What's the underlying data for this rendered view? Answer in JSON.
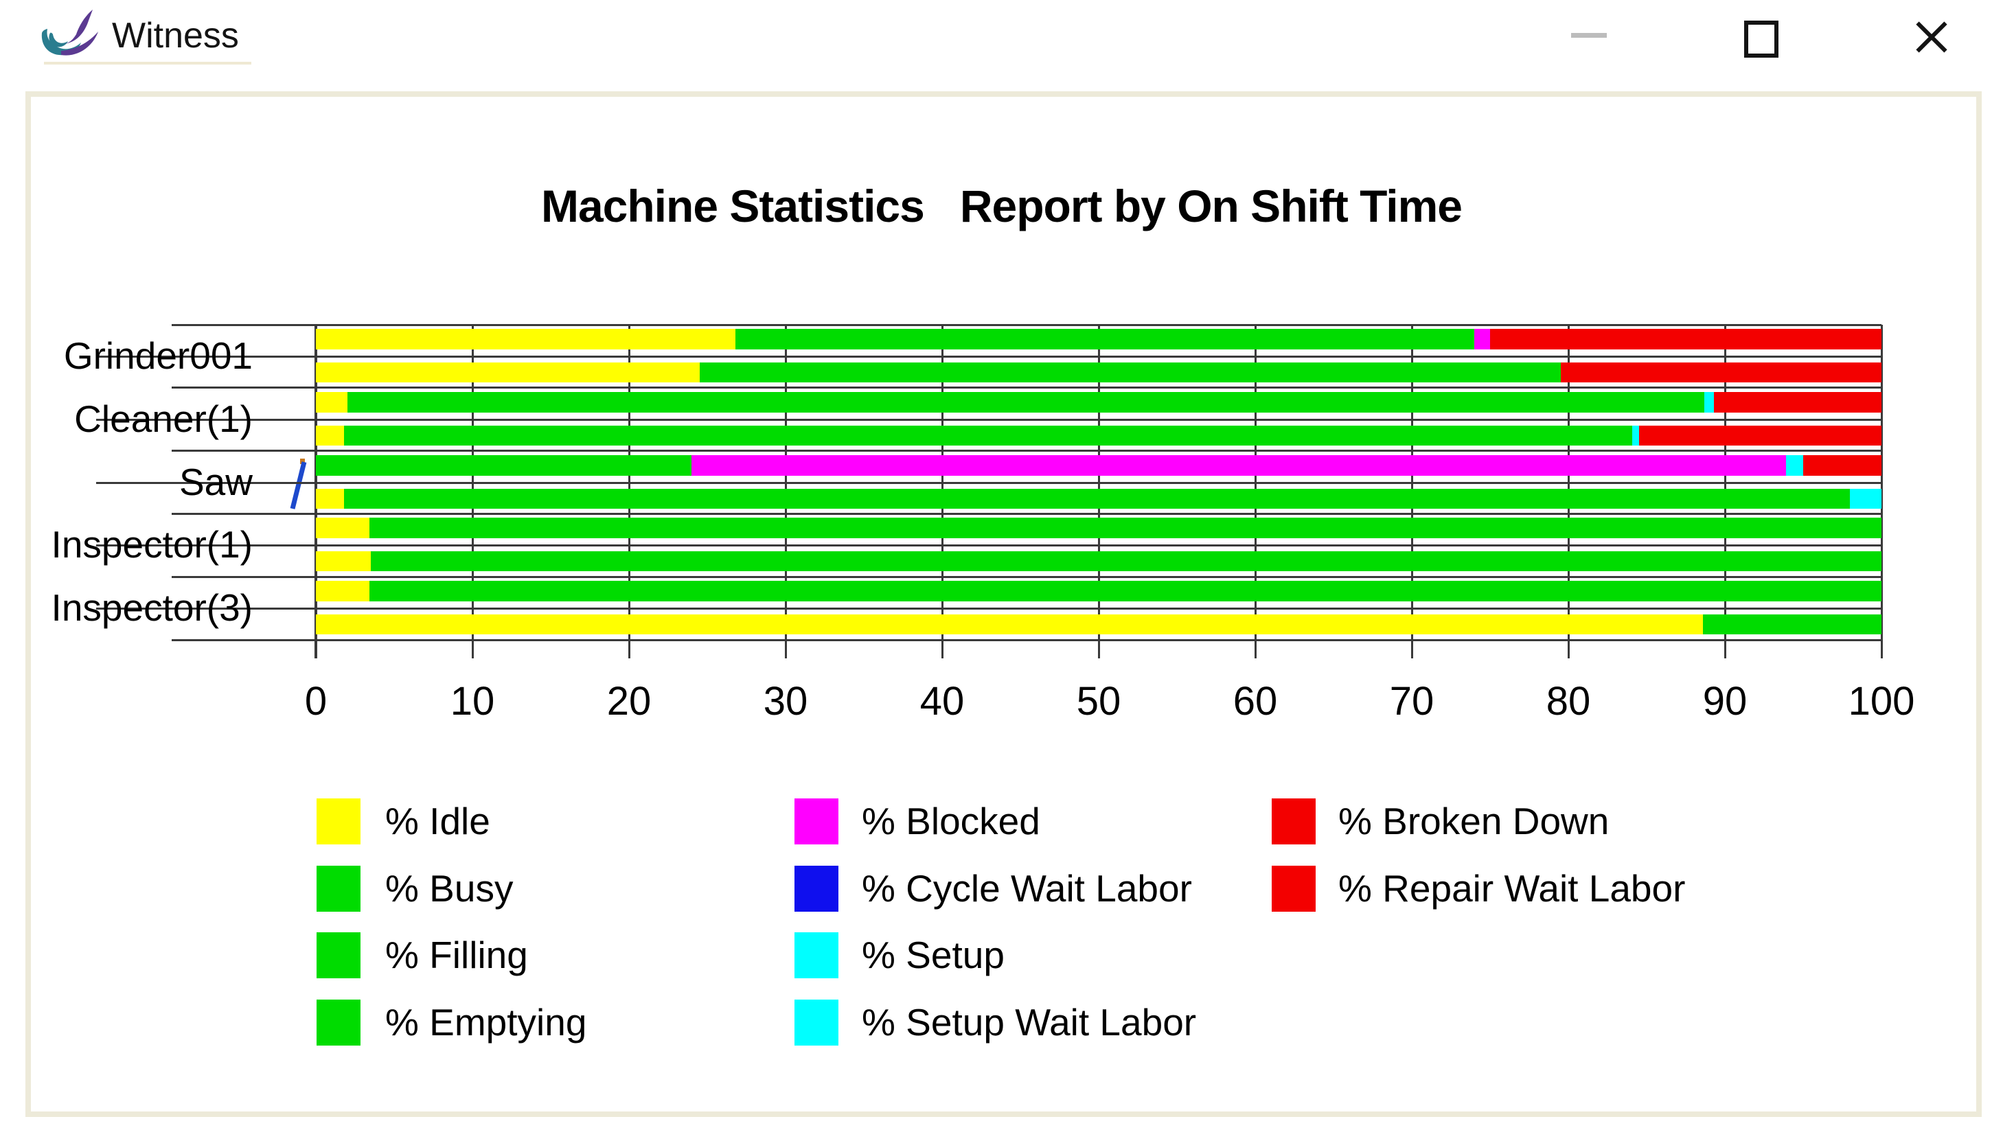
{
  "window": {
    "title": "Witness",
    "controls": {
      "minimize": "minimize",
      "maximize": "maximize",
      "close": "close"
    },
    "logo_colors": {
      "teal": "#2a7d8f",
      "purple": "#5b3a91"
    }
  },
  "chart_data": {
    "type": "stacked-bar-horizontal",
    "title": "Machine Statistics   Report by On Shift Time",
    "x_axis": {
      "min": 0,
      "max": 100,
      "tick_step": 10,
      "ticks": [
        "0",
        "10",
        "20",
        "30",
        "40",
        "50",
        "60",
        "70",
        "80",
        "90",
        "100"
      ]
    },
    "grid": "vertical-ticks-between-bars",
    "colors": {
      "% Idle": "#ffff00",
      "% Busy": "#00dc00",
      "% Filling": "#00dc00",
      "% Emptying": "#00dc00",
      "% Blocked": "#ff00ff",
      "% Cycle Wait Labor": "#0f0fee",
      "% Setup": "#00ffff",
      "% Setup Wait Labor": "#00ffff",
      "% Broken Down": "#f30000",
      "% Repair Wait Labor": "#f30000"
    },
    "machines": [
      {
        "name": "Grinder001",
        "bars": [
          [
            {
              "series": "% Idle",
              "value": 26.8
            },
            {
              "series": "% Busy",
              "value": 47.2
            },
            {
              "series": "% Blocked",
              "value": 1.0
            },
            {
              "series": "% Broken Down",
              "value": 25.0
            }
          ],
          [
            {
              "series": "% Idle",
              "value": 24.5
            },
            {
              "series": "% Busy",
              "value": 55.0
            },
            {
              "series": "% Broken Down",
              "value": 20.5
            }
          ]
        ]
      },
      {
        "name": "Cleaner(1)",
        "bars": [
          [
            {
              "series": "% Idle",
              "value": 2.0
            },
            {
              "series": "% Busy",
              "value": 86.7
            },
            {
              "series": "% Setup",
              "value": 0.6
            },
            {
              "series": "% Broken Down",
              "value": 10.7
            }
          ],
          [
            {
              "series": "% Idle",
              "value": 1.8
            },
            {
              "series": "% Busy",
              "value": 82.3
            },
            {
              "series": "% Setup",
              "value": 0.4
            },
            {
              "series": "% Broken Down",
              "value": 15.5
            }
          ]
        ]
      },
      {
        "name": "Saw",
        "bars": [
          [
            {
              "series": "% Busy",
              "value": 24.0
            },
            {
              "series": "% Blocked",
              "value": 69.9
            },
            {
              "series": "% Setup",
              "value": 1.1
            },
            {
              "series": "% Broken Down",
              "value": 5.0
            }
          ],
          [
            {
              "series": "% Idle",
              "value": 1.8
            },
            {
              "series": "% Busy",
              "value": 96.2
            },
            {
              "series": "% Setup",
              "value": 2.0
            }
          ]
        ]
      },
      {
        "name": "Inspector(1)",
        "bars": [
          [
            {
              "series": "% Idle",
              "value": 3.4
            },
            {
              "series": "% Busy",
              "value": 96.6
            }
          ],
          [
            {
              "series": "% Idle",
              "value": 3.5
            },
            {
              "series": "% Busy",
              "value": 96.5
            }
          ]
        ]
      },
      {
        "name": "Inspector(3)",
        "bars": [
          [
            {
              "series": "% Idle",
              "value": 3.4
            },
            {
              "series": "% Busy",
              "value": 96.6
            }
          ],
          [
            {
              "series": "% Idle",
              "value": 88.6
            },
            {
              "series": "% Busy",
              "value": 11.4
            }
          ]
        ]
      }
    ],
    "legend": {
      "position": "bottom",
      "columns": [
        [
          {
            "label": "% Idle",
            "color": "#ffff00",
            "pattern": "solid"
          },
          {
            "label": "% Busy",
            "color": "#00dc00",
            "pattern": "solid"
          },
          {
            "label": "% Filling",
            "color": "#00dc00",
            "pattern": "cross"
          },
          {
            "label": "% Emptying",
            "color": "#00dc00",
            "pattern": "grid"
          }
        ],
        [
          {
            "label": "% Blocked",
            "color": "#ff00ff",
            "pattern": "solid"
          },
          {
            "label": "% Cycle Wait Labor",
            "color": "#0f0fee",
            "pattern": "solid"
          },
          {
            "label": "% Setup",
            "color": "#00ffff",
            "pattern": "solid"
          },
          {
            "label": "% Setup Wait Labor",
            "color": "#00ffff",
            "pattern": "cross"
          }
        ],
        [
          {
            "label": "% Broken Down",
            "color": "#f30000",
            "pattern": "solid"
          },
          {
            "label": "% Repair Wait Labor",
            "color": "#f30000",
            "pattern": "cross"
          }
        ]
      ]
    }
  }
}
